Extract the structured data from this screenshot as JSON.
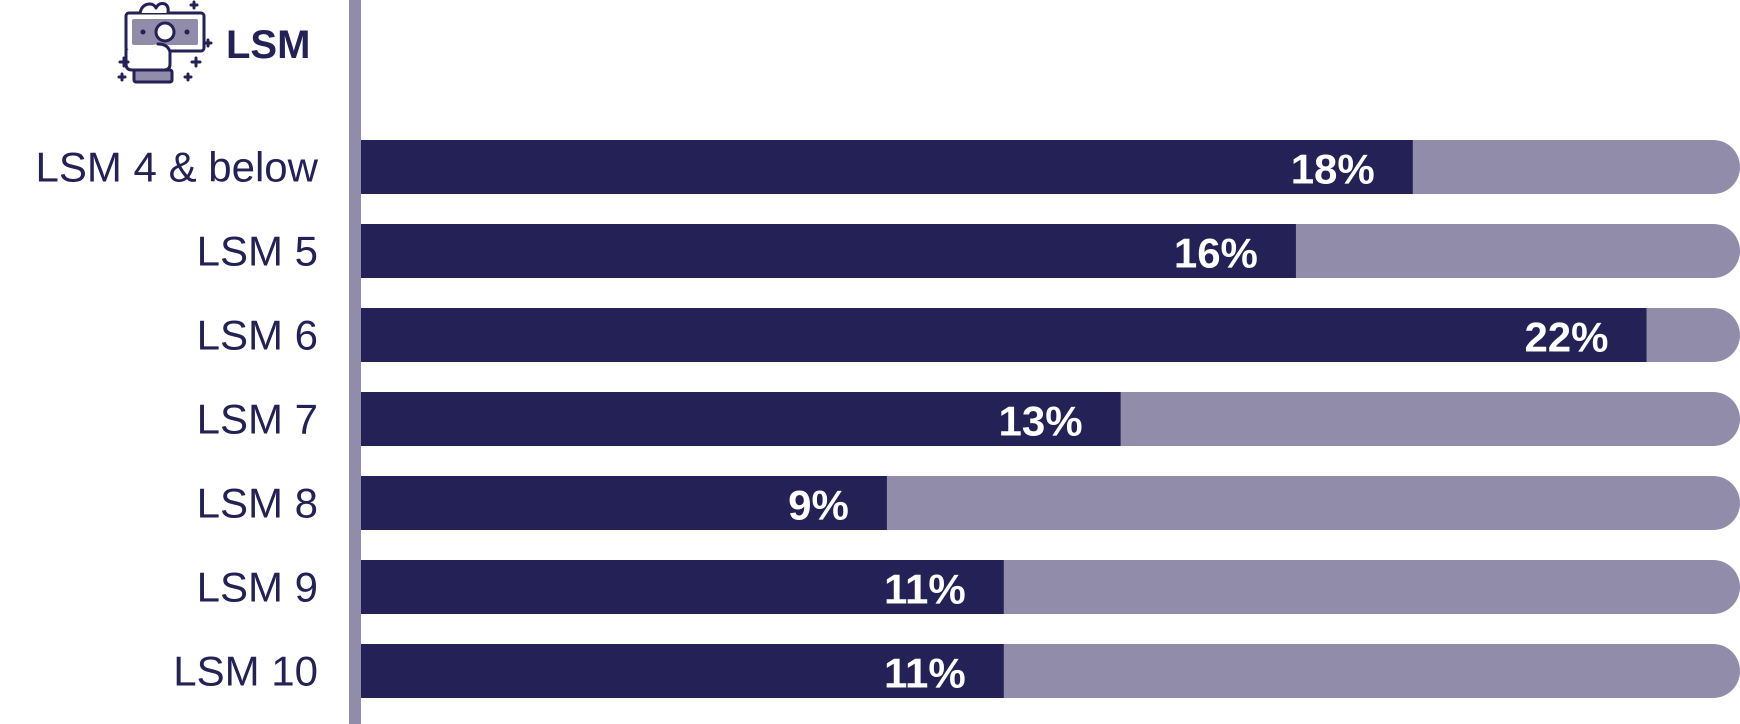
{
  "header": {
    "title": "LSM",
    "icon": "money-hand-icon"
  },
  "colors": {
    "bar_fill": "#232155",
    "bar_track": "#908ca9",
    "axis": "#908ca9",
    "text": "#232155",
    "value_text": "#ffffff"
  },
  "chart_data": {
    "type": "bar",
    "orientation": "horizontal",
    "title": "LSM",
    "categories": [
      "LSM 4 & below",
      "LSM 5",
      "LSM 6",
      "LSM 7",
      "LSM 8",
      "LSM 9",
      "LSM 10"
    ],
    "values": [
      18,
      16,
      22,
      13,
      9,
      11,
      11
    ],
    "value_labels": [
      "18%",
      "16%",
      "22%",
      "13%",
      "9%",
      "11%",
      "11%"
    ],
    "xlim": [
      0,
      23.6
    ],
    "grid": false,
    "legend": "none"
  }
}
